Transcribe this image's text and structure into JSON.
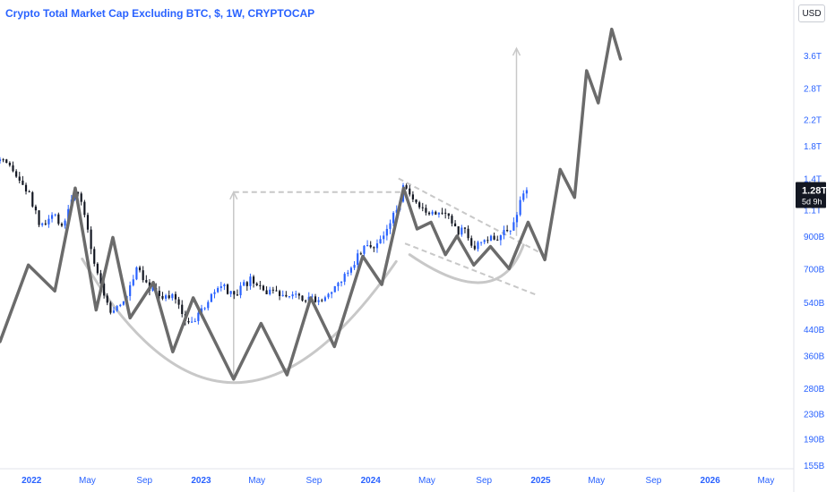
{
  "header": {
    "title": "Crypto Total Market Cap Excluding BTC, $, 1W, CRYPTOCAP",
    "currency": "USD"
  },
  "chart_data": {
    "type": "candlestick",
    "title": "Crypto Total Market Cap Excluding BTC, $, 1W, CRYPTOCAP",
    "y_scale": "log",
    "ylim": [
      155,
      4800
    ],
    "x_range": [
      "2021-10-25",
      "2026-06-30"
    ],
    "y_ticks": [
      {
        "value": 3600,
        "label": "3.6T"
      },
      {
        "value": 2800,
        "label": "2.8T"
      },
      {
        "value": 2200,
        "label": "2.2T"
      },
      {
        "value": 1800,
        "label": "1.8T"
      },
      {
        "value": 1400,
        "label": "1.4T"
      },
      {
        "value": 1100,
        "label": "1.1T"
      },
      {
        "value": 900,
        "label": "900B"
      },
      {
        "value": 700,
        "label": "700B"
      },
      {
        "value": 540,
        "label": "540B"
      },
      {
        "value": 440,
        "label": "440B"
      },
      {
        "value": 360,
        "label": "360B"
      },
      {
        "value": 280,
        "label": "280B"
      },
      {
        "value": 230,
        "label": "230B"
      },
      {
        "value": 190,
        "label": "190B"
      },
      {
        "value": 155,
        "label": "155B"
      }
    ],
    "x_ticks": [
      {
        "date": "2022-01-01",
        "label": "2022",
        "year": true
      },
      {
        "date": "2022-05-01",
        "label": "May",
        "year": false
      },
      {
        "date": "2022-09-01",
        "label": "Sep",
        "year": false
      },
      {
        "date": "2023-01-01",
        "label": "2023",
        "year": true
      },
      {
        "date": "2023-05-01",
        "label": "May",
        "year": false
      },
      {
        "date": "2023-09-01",
        "label": "Sep",
        "year": false
      },
      {
        "date": "2024-01-01",
        "label": "2024",
        "year": true
      },
      {
        "date": "2024-05-01",
        "label": "May",
        "year": false
      },
      {
        "date": "2024-09-01",
        "label": "Sep",
        "year": false
      },
      {
        "date": "2025-01-01",
        "label": "2025",
        "year": true
      },
      {
        "date": "2025-05-01",
        "label": "May",
        "year": false
      },
      {
        "date": "2025-09-01",
        "label": "Sep",
        "year": false
      },
      {
        "date": "2026-01-01",
        "label": "2026",
        "year": true
      },
      {
        "date": "2026-05-01",
        "label": "May",
        "year": false
      }
    ],
    "price_anchors": [
      [
        "2021-10-25",
        1600
      ],
      [
        "2021-11-20",
        1480
      ],
      [
        "2021-12-25",
        1250
      ],
      [
        "2022-01-22",
        950
      ],
      [
        "2022-02-15",
        1050
      ],
      [
        "2022-03-10",
        980
      ],
      [
        "2022-04-05",
        1300
      ],
      [
        "2022-04-25",
        1050
      ],
      [
        "2022-05-15",
        750
      ],
      [
        "2022-06-18",
        500
      ],
      [
        "2022-07-20",
        540
      ],
      [
        "2022-08-15",
        720
      ],
      [
        "2022-09-15",
        600
      ],
      [
        "2022-10-20",
        560
      ],
      [
        "2022-11-10",
        560
      ],
      [
        "2022-11-25",
        480
      ],
      [
        "2022-12-20",
        470
      ],
      [
        "2023-01-20",
        560
      ],
      [
        "2023-02-15",
        610
      ],
      [
        "2023-03-12",
        560
      ],
      [
        "2023-04-15",
        640
      ],
      [
        "2023-05-20",
        590
      ],
      [
        "2023-06-15",
        570
      ],
      [
        "2023-07-15",
        590
      ],
      [
        "2023-08-15",
        560
      ],
      [
        "2023-09-15",
        560
      ],
      [
        "2023-10-15",
        590
      ],
      [
        "2023-11-15",
        700
      ],
      [
        "2023-12-15",
        820
      ],
      [
        "2024-01-15",
        850
      ],
      [
        "2024-02-10",
        960
      ],
      [
        "2024-03-12",
        1300
      ],
      [
        "2024-04-15",
        1090
      ],
      [
        "2024-05-15",
        1090
      ],
      [
        "2024-06-10",
        1100
      ],
      [
        "2024-07-05",
        920
      ],
      [
        "2024-07-25",
        950
      ],
      [
        "2024-08-08",
        830
      ],
      [
        "2024-09-05",
        860
      ],
      [
        "2024-10-01",
        900
      ],
      [
        "2024-10-30",
        930
      ],
      [
        "2024-11-15",
        1150
      ],
      [
        "2024-12-02",
        1300
      ]
    ],
    "last_price": {
      "value": 1280,
      "label": "1.28T",
      "timer": "5d 9h"
    },
    "projection_path": [
      [
        "2021-10-25",
        400
      ],
      [
        "2021-12-25",
        720
      ],
      [
        "2022-02-20",
        590
      ],
      [
        "2022-04-05",
        1300
      ],
      [
        "2022-05-20",
        510
      ],
      [
        "2022-06-25",
        890
      ],
      [
        "2022-08-01",
        480
      ],
      [
        "2022-09-20",
        630
      ],
      [
        "2022-11-01",
        370
      ],
      [
        "2022-12-15",
        560
      ],
      [
        "2023-03-12",
        300
      ],
      [
        "2023-05-10",
        460
      ],
      [
        "2023-07-05",
        310
      ],
      [
        "2023-08-25",
        560
      ],
      [
        "2023-10-15",
        385
      ],
      [
        "2023-12-15",
        770
      ],
      [
        "2024-01-25",
        620
      ],
      [
        "2024-03-12",
        1300
      ],
      [
        "2024-04-10",
        950
      ],
      [
        "2024-05-10",
        1000
      ],
      [
        "2024-06-10",
        780
      ],
      [
        "2024-07-05",
        900
      ],
      [
        "2024-08-10",
        720
      ],
      [
        "2024-09-15",
        830
      ],
      [
        "2024-10-25",
        700
      ],
      [
        "2024-12-05",
        1000
      ],
      [
        "2025-01-10",
        750
      ],
      [
        "2025-02-12",
        1500
      ],
      [
        "2025-03-15",
        1210
      ],
      [
        "2025-04-10",
        3200
      ],
      [
        "2025-05-05",
        2500
      ],
      [
        "2025-06-03",
        4400
      ],
      [
        "2025-06-22",
        3500
      ]
    ],
    "drawings": {
      "neckline": [
        [
          "2023-03-12",
          1260
        ],
        [
          "2024-03-12",
          1260
        ]
      ],
      "measured_move_arrows": [
        [
          [
            "2023-03-12",
            300
          ],
          [
            "2023-03-12",
            1260
          ]
        ],
        [
          [
            "2024-11-10",
            900
          ],
          [
            "2024-11-10",
            3800
          ]
        ]
      ],
      "channel_upper": [
        [
          "2024-03-01",
          1400
        ],
        [
          "2025-01-01",
          790
        ]
      ],
      "channel_lower": [
        [
          "2024-03-15",
          850
        ],
        [
          "2024-12-20",
          575
        ]
      ],
      "big_cup_arc": {
        "start": [
          "2022-04-20",
          755
        ],
        "bottom": [
          "2023-03-12",
          292
        ],
        "end": [
          "2024-02-25",
          740
        ]
      },
      "small_cup_arc": {
        "start": [
          "2024-03-25",
          780
        ],
        "bottom": [
          "2024-08-28",
          630
        ],
        "end": [
          "2024-11-25",
          840
        ]
      }
    },
    "colors": {
      "up": "#2962ff",
      "down": "#131722",
      "path": "#6b6b6b",
      "drawing": "#c8c8c8",
      "dashed": "#c8c8c8",
      "label_bg": "#131722"
    }
  }
}
